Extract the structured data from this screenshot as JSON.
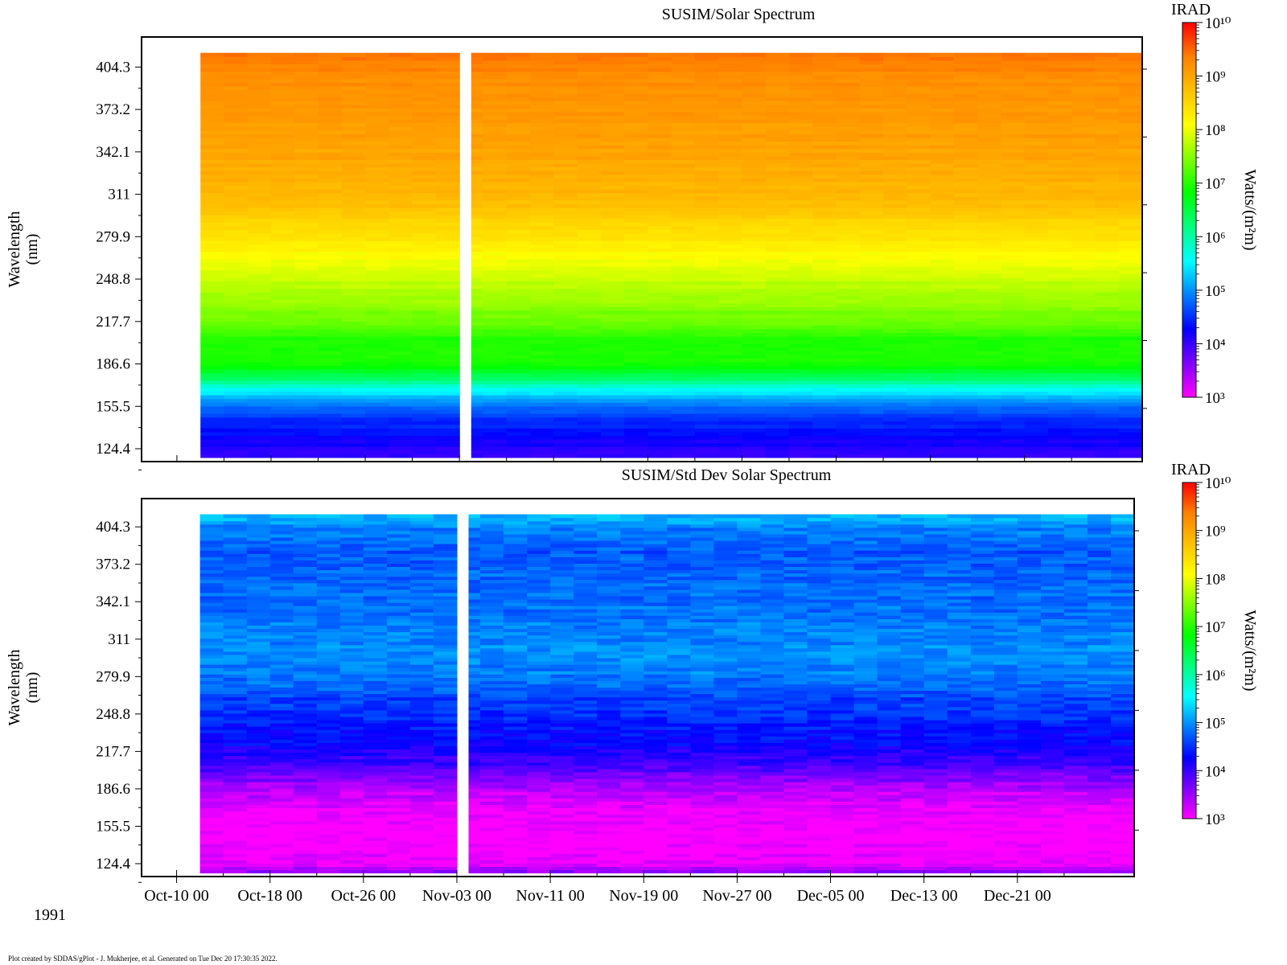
{
  "footer": {
    "year": "1991",
    "credit": "Plot created by SDDAS/gPlot - J. Mukherjee, et al.  Generated on Tue Dec 20 17:30:35 2022."
  },
  "colorbar_colors": [
    "#ff00ff",
    "#8000ff",
    "#0000ff",
    "#0080ff",
    "#00ffff",
    "#00ff80",
    "#00ff00",
    "#80ff00",
    "#ffff00",
    "#ffc000",
    "#ff8000",
    "#ff0000"
  ],
  "chart_data": [
    {
      "type": "heatmap",
      "title": "SUSIM/Solar Spectrum",
      "ylabel": "Wavelength",
      "ylabel_unit": "(nm)",
      "y_ticks": [
        "404.3",
        "373.2",
        "342.1",
        "311",
        "279.9",
        "248.8",
        "217.7",
        "186.6",
        "155.5",
        "124.4"
      ],
      "y_range": [
        115,
        413
      ],
      "colorbar": {
        "label": "IRAD",
        "unit": "Watts/(m²m)",
        "ticks": [
          "10¹⁰",
          "10⁹",
          "10⁸",
          "10⁷",
          "10⁶",
          "10⁵",
          "10⁴",
          "10³"
        ],
        "range_log10": [
          3,
          10
        ]
      },
      "data_start": "1991-10-12",
      "data_gap": [
        "1991-11-03",
        "1991-11-04"
      ],
      "data_end": "1991-12-31",
      "log10_profile": {
        "wavelength": [
          118,
          125,
          135,
          150,
          160,
          168,
          175,
          185,
          205,
          215,
          240,
          260,
          280,
          300,
          320,
          340,
          360,
          390,
          410
        ],
        "value": [
          4.0,
          4.1,
          4.3,
          4.6,
          5.1,
          5.6,
          6.3,
          6.9,
          7.0,
          7.3,
          7.7,
          8.0,
          8.4,
          8.7,
          8.9,
          9.0,
          9.1,
          9.2,
          9.4
        ]
      }
    },
    {
      "type": "heatmap",
      "title": "SUSIM/Std Dev Solar Spectrum",
      "ylabel": "Wavelength",
      "ylabel_unit": "(nm)",
      "y_ticks": [
        "404.3",
        "373.2",
        "342.1",
        "311",
        "279.9",
        "248.8",
        "217.7",
        "186.6",
        "155.5",
        "124.4"
      ],
      "y_range": [
        115,
        413
      ],
      "x_ticks": [
        "Oct-10 00",
        "Oct-18 00",
        "Oct-26 00",
        "Nov-03 00",
        "Nov-11 00",
        "Nov-19 00",
        "Nov-27 00",
        "Dec-05 00",
        "Dec-13 00",
        "Dec-21 00"
      ],
      "x_range": [
        "1991-10-07",
        "1991-12-31"
      ],
      "colorbar": {
        "label": "IRAD",
        "unit": "Watts/(m²m)",
        "ticks": [
          "10¹⁰",
          "10⁹",
          "10⁸",
          "10⁷",
          "10⁶",
          "10⁵",
          "10⁴",
          "10³"
        ],
        "range_log10": [
          3,
          10
        ]
      },
      "data_start": "1991-10-12",
      "data_gap": [
        "1991-11-03",
        "1991-11-04"
      ],
      "data_end": "1991-12-31",
      "log10_profile": {
        "wavelength": [
          118,
          125,
          140,
          155,
          170,
          185,
          195,
          205,
          220,
          240,
          260,
          280,
          300,
          320,
          350,
          380,
          400,
          410
        ],
        "value": [
          3.6,
          3.1,
          3.0,
          3.0,
          3.1,
          3.3,
          3.6,
          3.9,
          4.2,
          4.4,
          4.6,
          4.9,
          5.0,
          4.9,
          4.8,
          4.7,
          4.9,
          5.2
        ]
      }
    }
  ]
}
